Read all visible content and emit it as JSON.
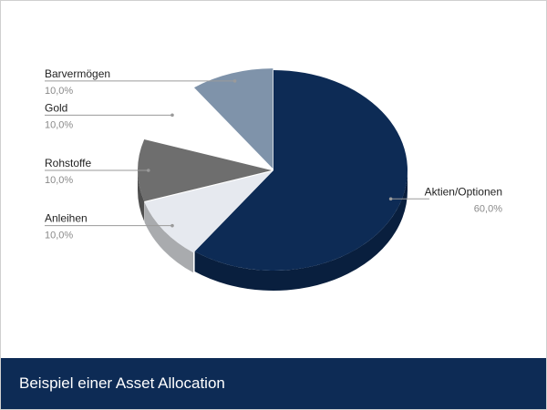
{
  "footer": {
    "title": "Beispiel einer Asset Allocation"
  },
  "colors": {
    "footer_bg": "#0d2b55"
  },
  "chart_data": {
    "type": "pie",
    "style": "3d",
    "title": "",
    "slices": [
      {
        "label": "Aktien/Optionen",
        "value": 60.0,
        "display": "60,0%",
        "color": "#0d2b55",
        "side_color": "#091f3e"
      },
      {
        "label": "Anleihen",
        "value": 10.0,
        "display": "10,0%",
        "color": "#e6e9ef",
        "side_color": "#a9abae"
      },
      {
        "label": "Rohstoffe",
        "value": 10.0,
        "display": "10,0%",
        "color": "#6e6e6e",
        "side_color": "#4f4f4f"
      },
      {
        "label": "Gold",
        "value": 10.0,
        "display": "10,0%",
        "color": "#ffffff",
        "side_color": "#e8e8e8"
      },
      {
        "label": "Barvermögen",
        "value": 10.0,
        "display": "10,0%",
        "color": "#7f93aa",
        "side_color": "#5f7086"
      }
    ]
  }
}
